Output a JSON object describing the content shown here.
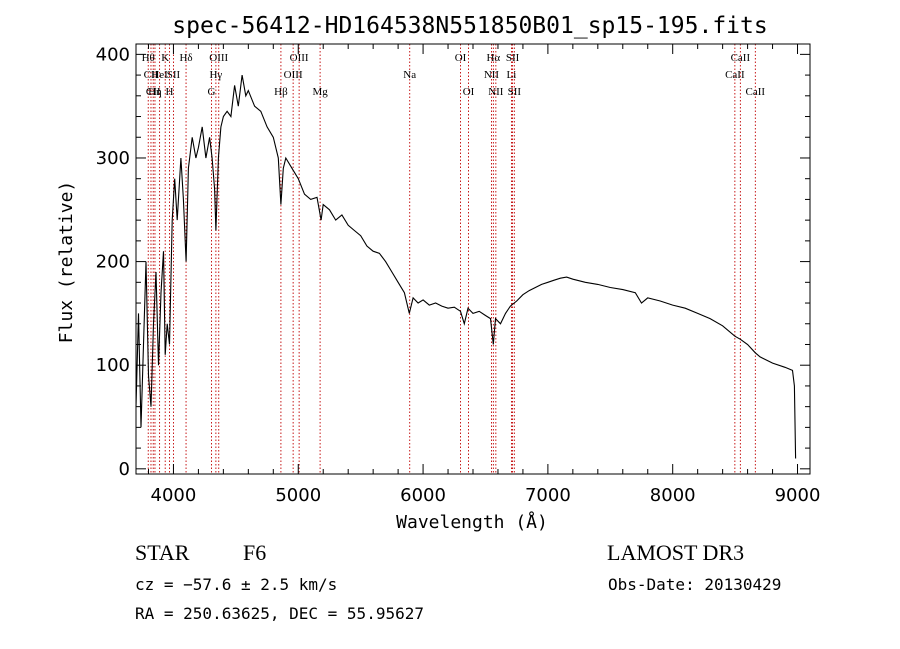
{
  "chart_data": {
    "type": "line",
    "title": "spec-56412-HD164538N551850B01_sp15-195.fits",
    "xlabel": "Wavelength (Å)",
    "ylabel": "Flux (relative)",
    "xlim": [
      3700,
      9100
    ],
    "ylim": [
      -5,
      410
    ],
    "xticks": [
      4000,
      5000,
      6000,
      7000,
      8000,
      9000
    ],
    "yticks": [
      0,
      100,
      200,
      300,
      400
    ],
    "series": [
      {
        "points": [
          [
            3700,
            60
          ],
          [
            3720,
            150
          ],
          [
            3740,
            40
          ],
          [
            3760,
            120
          ],
          [
            3780,
            200
          ],
          [
            3800,
            90
          ],
          [
            3820,
            60
          ],
          [
            3840,
            140
          ],
          [
            3860,
            190
          ],
          [
            3880,
            100
          ],
          [
            3900,
            170
          ],
          [
            3920,
            210
          ],
          [
            3934,
            110
          ],
          [
            3950,
            140
          ],
          [
            3968,
            120
          ],
          [
            3990,
            240
          ],
          [
            4010,
            280
          ],
          [
            4030,
            240
          ],
          [
            4060,
            300
          ],
          [
            4080,
            260
          ],
          [
            4101,
            200
          ],
          [
            4120,
            290
          ],
          [
            4150,
            320
          ],
          [
            4180,
            300
          ],
          [
            4200,
            310
          ],
          [
            4230,
            330
          ],
          [
            4260,
            300
          ],
          [
            4290,
            320
          ],
          [
            4310,
            300
          ],
          [
            4330,
            270
          ],
          [
            4340,
            230
          ],
          [
            4360,
            300
          ],
          [
            4380,
            330
          ],
          [
            4400,
            340
          ],
          [
            4430,
            345
          ],
          [
            4460,
            340
          ],
          [
            4490,
            370
          ],
          [
            4520,
            350
          ],
          [
            4550,
            380
          ],
          [
            4580,
            360
          ],
          [
            4600,
            365
          ],
          [
            4650,
            350
          ],
          [
            4700,
            345
          ],
          [
            4750,
            330
          ],
          [
            4800,
            320
          ],
          [
            4840,
            300
          ],
          [
            4861,
            255
          ],
          [
            4880,
            290
          ],
          [
            4900,
            300
          ],
          [
            4950,
            290
          ],
          [
            5000,
            280
          ],
          [
            5050,
            265
          ],
          [
            5100,
            260
          ],
          [
            5150,
            262
          ],
          [
            5183,
            240
          ],
          [
            5200,
            255
          ],
          [
            5250,
            250
          ],
          [
            5300,
            240
          ],
          [
            5350,
            245
          ],
          [
            5400,
            235
          ],
          [
            5450,
            230
          ],
          [
            5500,
            225
          ],
          [
            5550,
            215
          ],
          [
            5600,
            210
          ],
          [
            5650,
            208
          ],
          [
            5700,
            200
          ],
          [
            5750,
            190
          ],
          [
            5800,
            180
          ],
          [
            5850,
            170
          ],
          [
            5890,
            150
          ],
          [
            5920,
            165
          ],
          [
            5960,
            160
          ],
          [
            6000,
            163
          ],
          [
            6050,
            158
          ],
          [
            6100,
            160
          ],
          [
            6150,
            157
          ],
          [
            6200,
            155
          ],
          [
            6250,
            156
          ],
          [
            6300,
            152
          ],
          [
            6330,
            140
          ],
          [
            6360,
            155
          ],
          [
            6400,
            150
          ],
          [
            6450,
            152
          ],
          [
            6500,
            148
          ],
          [
            6540,
            145
          ],
          [
            6563,
            120
          ],
          [
            6580,
            145
          ],
          [
            6620,
            140
          ],
          [
            6660,
            150
          ],
          [
            6700,
            157
          ],
          [
            6750,
            162
          ],
          [
            6800,
            168
          ],
          [
            6850,
            172
          ],
          [
            6900,
            175
          ],
          [
            6950,
            178
          ],
          [
            7000,
            180
          ],
          [
            7050,
            182
          ],
          [
            7100,
            184
          ],
          [
            7150,
            185
          ],
          [
            7200,
            183
          ],
          [
            7300,
            180
          ],
          [
            7400,
            178
          ],
          [
            7500,
            175
          ],
          [
            7600,
            173
          ],
          [
            7700,
            170
          ],
          [
            7750,
            160
          ],
          [
            7800,
            165
          ],
          [
            7900,
            162
          ],
          [
            8000,
            158
          ],
          [
            8100,
            155
          ],
          [
            8200,
            150
          ],
          [
            8300,
            145
          ],
          [
            8400,
            138
          ],
          [
            8498,
            128
          ],
          [
            8542,
            125
          ],
          [
            8600,
            120
          ],
          [
            8662,
            112
          ],
          [
            8700,
            108
          ],
          [
            8800,
            102
          ],
          [
            8900,
            98
          ],
          [
            8960,
            95
          ],
          [
            8975,
            80
          ],
          [
            8985,
            10
          ]
        ]
      }
    ],
    "line_markers": [
      {
        "label": "Hθ",
        "x": 3798,
        "row": 1
      },
      {
        "label": "CII",
        "x": 3820,
        "row": 2
      },
      {
        "label": "CII",
        "x": 3838,
        "row": 3
      },
      {
        "label": "Hη",
        "x": 3852,
        "row": 3
      },
      {
        "label": "HeI",
        "x": 3889,
        "row": 2
      },
      {
        "label": "K",
        "x": 3934,
        "row": 1
      },
      {
        "label": "H",
        "x": 3968,
        "row": 3
      },
      {
        "label": "SII",
        "x": 4000,
        "row": 2
      },
      {
        "label": "Hδ",
        "x": 4101,
        "row": 1
      },
      {
        "label": "OIII",
        "x": 4363,
        "row": 1
      },
      {
        "label": "Hγ",
        "x": 4340,
        "row": 2
      },
      {
        "label": "G",
        "x": 4305,
        "row": 3
      },
      {
        "label": "Hβ",
        "x": 4861,
        "row": 3
      },
      {
        "label": "OIII",
        "x": 4959,
        "row": 2
      },
      {
        "label": "OIII",
        "x": 5007,
        "row": 1
      },
      {
        "label": "Mg",
        "x": 5175,
        "row": 3
      },
      {
        "label": "Na",
        "x": 5893,
        "row": 2
      },
      {
        "label": "OI",
        "x": 6300,
        "row": 1
      },
      {
        "label": "OI",
        "x": 6364,
        "row": 3
      },
      {
        "label": "Hα",
        "x": 6563,
        "row": 1
      },
      {
        "label": "NII",
        "x": 6548,
        "row": 2
      },
      {
        "label": "NII",
        "x": 6583,
        "row": 3
      },
      {
        "label": "SII",
        "x": 6717,
        "row": 1
      },
      {
        "label": "Li",
        "x": 6708,
        "row": 2
      },
      {
        "label": "SII",
        "x": 6731,
        "row": 3
      },
      {
        "label": "CaII",
        "x": 8498,
        "row": 2
      },
      {
        "label": "CaII",
        "x": 8542,
        "row": 1
      },
      {
        "label": "CaII",
        "x": 8662,
        "row": 3
      }
    ],
    "colors": {
      "spectrum": "#000000",
      "markers": "#c00000"
    }
  },
  "info": {
    "object_class": "STAR",
    "subclass": "F6",
    "survey": "LAMOST DR3",
    "cz": "cz = −57.6 ± 2.5 km/s",
    "obs_date": "Obs-Date: 20130429",
    "radec": "RA = 250.63625, DEC =  55.95627"
  }
}
